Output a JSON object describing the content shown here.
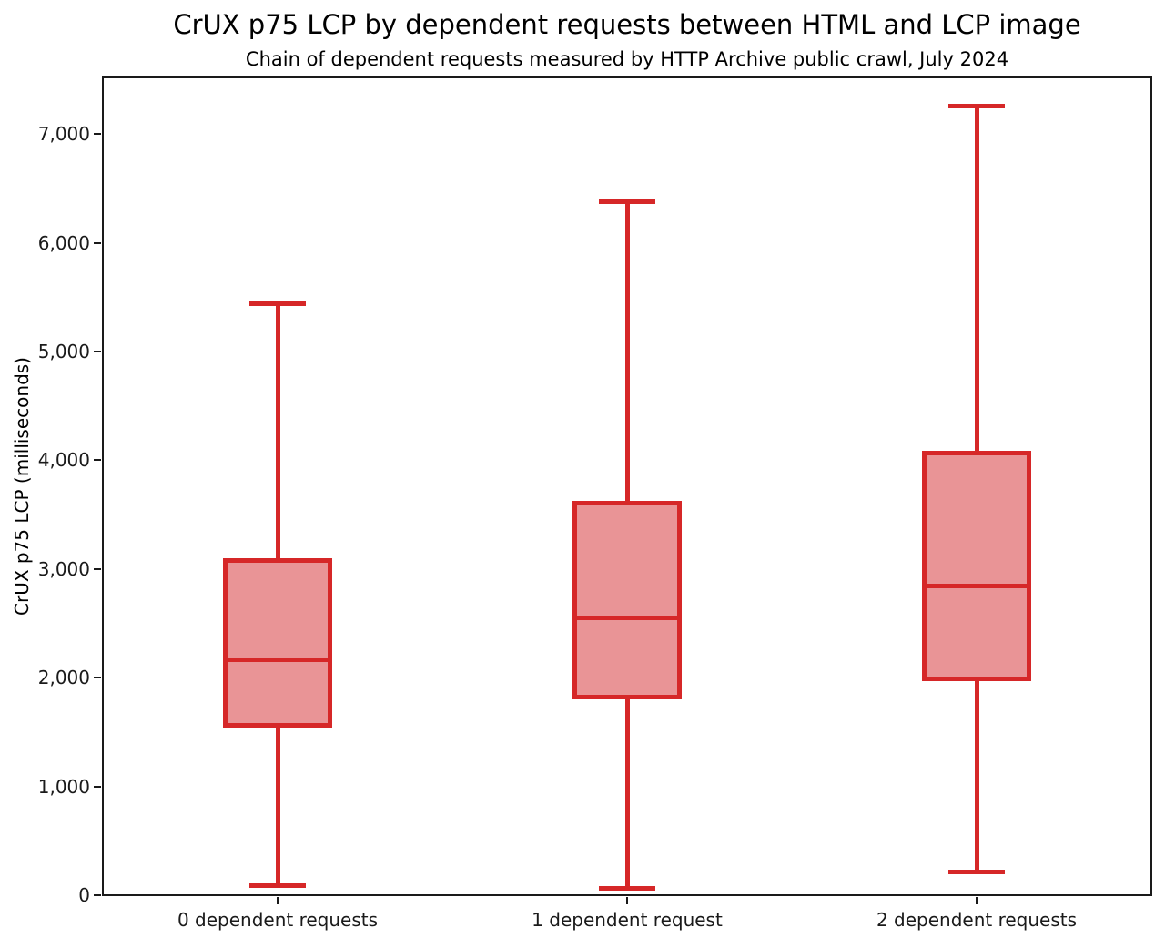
{
  "chart_data": {
    "type": "boxplot",
    "title": "CrUX p75 LCP by dependent requests between HTML and LCP image",
    "subtitle": "Chain of dependent requests measured by HTTP Archive public crawl, July 2024",
    "ylabel": "CrUX p75 LCP (milliseconds)",
    "xlabel": "",
    "units": "milliseconds",
    "ylim": [
      0,
      7520
    ],
    "grid": false,
    "legend": false,
    "yticks": {
      "values": [
        0,
        1000,
        2000,
        3000,
        4000,
        5000,
        6000,
        7000
      ],
      "labels": [
        "0",
        "1,000",
        "2,000",
        "3,000",
        "4,000",
        "5,000",
        "6,000",
        "7,000"
      ]
    },
    "categories": [
      "0 dependent requests",
      "1 dependent request",
      "2 dependent requests"
    ],
    "boxes": [
      {
        "category": "0 dependent requests",
        "whisker_low": 90,
        "q1": 1540,
        "median": 2170,
        "q3": 3100,
        "whisker_high": 5440
      },
      {
        "category": "1 dependent request",
        "whisker_low": 70,
        "q1": 1800,
        "median": 2550,
        "q3": 3630,
        "whisker_high": 6380
      },
      {
        "category": "2 dependent requests",
        "whisker_low": 220,
        "q1": 1970,
        "median": 2850,
        "q3": 4090,
        "whisker_high": 7260
      }
    ],
    "colors": {
      "box_edge": "#d62728",
      "box_fill": "#e99496",
      "axis": "#1a1a1a",
      "text": "#000000",
      "background": "#ffffff"
    }
  }
}
